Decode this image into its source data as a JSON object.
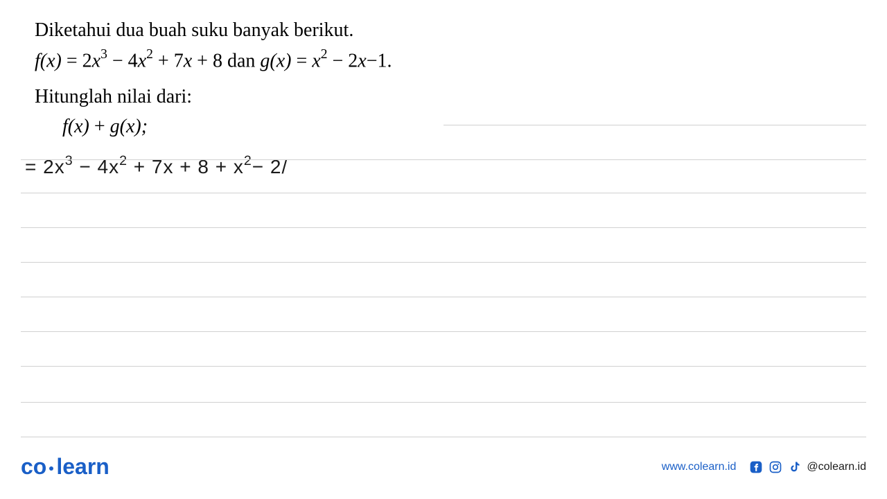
{
  "problem": {
    "line1": "Diketahui dua buah suku banyak berikut.",
    "fx_label": "f",
    "fx_var": "(x)",
    "equals": " = ",
    "fx_terms": {
      "t1_coef": "2",
      "t1_var": "x",
      "t1_exp": "3",
      "t2": " − 4",
      "t2_var": "x",
      "t2_exp": "2",
      "t3": " + 7",
      "t3_var": "x",
      "t4": " + 8"
    },
    "dan": " dan ",
    "gx_label": "g",
    "gx_var": "(x)",
    "gx_terms": {
      "t1_var": "x",
      "t1_exp": "2",
      "t2": " − 2",
      "t2_var": "x",
      "t3": "−1."
    },
    "line3": "Hitunglah nilai dari:",
    "line4_f": "f",
    "line4_fx": "(x)",
    "line4_plus": " + ",
    "line4_g": "g",
    "line4_gx": "(x);"
  },
  "handwritten": {
    "eq": "=",
    "t1_coef": " 2x",
    "t1_exp": "3",
    "t2": " − 4x",
    "t2_exp": "2",
    "t3": " + 7x + 8  +  x",
    "t3_exp": "2",
    "t4": "− 2/"
  },
  "lines": {
    "positions": [
      180,
      230,
      278,
      328,
      378,
      428,
      478,
      528,
      580,
      630
    ]
  },
  "footer": {
    "logo_co": "co",
    "logo_learn": "learn",
    "url": "www.colearn.id",
    "handle": "@colearn.id"
  },
  "colors": {
    "brand": "#1a5fc7",
    "line": "#d0d0d0",
    "text": "#000000",
    "handwriting": "#1a1a1a"
  }
}
